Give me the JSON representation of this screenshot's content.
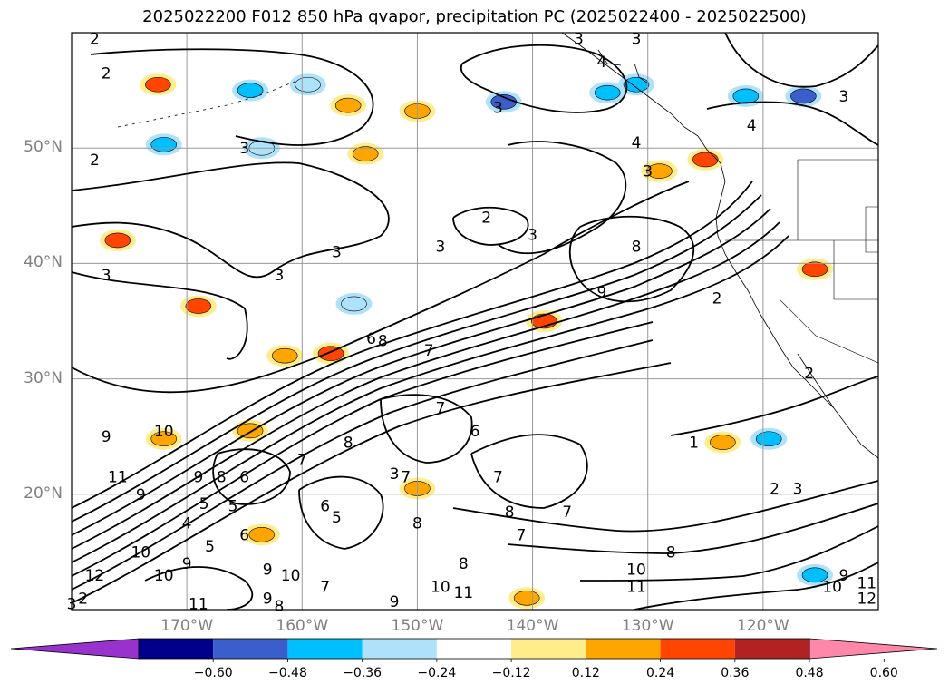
{
  "title": "2025022200 F012 850 hPa qvapor, precipitation PC (2025022400 - 2025022500)",
  "map": {
    "lon_range": [
      -180,
      -110
    ],
    "lat_range": [
      10,
      60
    ],
    "lat_ticks": [
      {
        "value": 50,
        "label": "50°N"
      },
      {
        "value": 40,
        "label": "40°N"
      },
      {
        "value": 30,
        "label": "30°N"
      },
      {
        "value": 20,
        "label": "20°N"
      }
    ],
    "lon_ticks": [
      {
        "value": -170,
        "label": "170°W"
      },
      {
        "value": -160,
        "label": "160°W"
      },
      {
        "value": -150,
        "label": "150°W"
      },
      {
        "value": -140,
        "label": "140°W"
      },
      {
        "value": -130,
        "label": "130°W"
      },
      {
        "value": -120,
        "label": "120°W"
      }
    ],
    "contour_labels": [
      {
        "text": "2",
        "lon": -178,
        "lat": 59.5
      },
      {
        "text": "2",
        "lon": -177,
        "lat": 56.5
      },
      {
        "text": "2",
        "lon": -178,
        "lat": 49
      },
      {
        "text": "3",
        "lon": -165,
        "lat": 50
      },
      {
        "text": "3",
        "lon": -143,
        "lat": 53.5
      },
      {
        "text": "3",
        "lon": -136,
        "lat": 59.5
      },
      {
        "text": "3",
        "lon": -131,
        "lat": 59.5
      },
      {
        "text": "4",
        "lon": -134,
        "lat": 57.5
      },
      {
        "text": "3",
        "lon": -113,
        "lat": 54.5
      },
      {
        "text": "4",
        "lon": -121,
        "lat": 52
      },
      {
        "text": "4",
        "lon": -131,
        "lat": 50.5
      },
      {
        "text": "3",
        "lon": -130,
        "lat": 48
      },
      {
        "text": "3",
        "lon": -148,
        "lat": 41.5
      },
      {
        "text": "2",
        "lon": -144,
        "lat": 44
      },
      {
        "text": "3",
        "lon": -140,
        "lat": 42.5
      },
      {
        "text": "3",
        "lon": -157,
        "lat": 41
      },
      {
        "text": "3",
        "lon": -162,
        "lat": 39
      },
      {
        "text": "3",
        "lon": -177,
        "lat": 39
      },
      {
        "text": "8",
        "lon": -131,
        "lat": 41.5
      },
      {
        "text": "9",
        "lon": -134,
        "lat": 37.5
      },
      {
        "text": "2",
        "lon": -124,
        "lat": 37
      },
      {
        "text": "6",
        "lon": -154,
        "lat": 33.5
      },
      {
        "text": "8",
        "lon": -153,
        "lat": 33.3
      },
      {
        "text": "7",
        "lon": -149,
        "lat": 32.5
      },
      {
        "text": "2",
        "lon": -116,
        "lat": 30.5
      },
      {
        "text": "1",
        "lon": -126,
        "lat": 24.5
      },
      {
        "text": "7",
        "lon": -148,
        "lat": 27.5
      },
      {
        "text": "6",
        "lon": -145,
        "lat": 25.5
      },
      {
        "text": "9",
        "lon": -177,
        "lat": 25
      },
      {
        "text": "10",
        "lon": -172,
        "lat": 25.5
      },
      {
        "text": "8",
        "lon": -156,
        "lat": 24.5
      },
      {
        "text": "7",
        "lon": -160,
        "lat": 23
      },
      {
        "text": "7",
        "lon": -143,
        "lat": 21.5
      },
      {
        "text": "6",
        "lon": -165,
        "lat": 21.5
      },
      {
        "text": "8",
        "lon": -167,
        "lat": 21.5
      },
      {
        "text": "9",
        "lon": -169,
        "lat": 21.5
      },
      {
        "text": "11",
        "lon": -176,
        "lat": 21.5
      },
      {
        "text": "9",
        "lon": -174,
        "lat": 20
      },
      {
        "text": "7",
        "lon": -151,
        "lat": 21.5
      },
      {
        "text": "2",
        "lon": -119,
        "lat": 20.5
      },
      {
        "text": "3",
        "lon": -117,
        "lat": 20.5
      },
      {
        "text": "5",
        "lon": -166,
        "lat": 19
      },
      {
        "text": "6",
        "lon": -158,
        "lat": 19
      },
      {
        "text": "5",
        "lon": -157,
        "lat": 18
      },
      {
        "text": "7",
        "lon": -137,
        "lat": 18.5
      },
      {
        "text": "8",
        "lon": -142,
        "lat": 18.5
      },
      {
        "text": "4",
        "lon": -170,
        "lat": 17.5
      },
      {
        "text": "8",
        "lon": -150,
        "lat": 17.5
      },
      {
        "text": "7",
        "lon": -141,
        "lat": 16.5
      },
      {
        "text": "6",
        "lon": -165,
        "lat": 16.5
      },
      {
        "text": "5",
        "lon": -168,
        "lat": 15.5
      },
      {
        "text": "8",
        "lon": -128,
        "lat": 15
      },
      {
        "text": "10",
        "lon": -174,
        "lat": 15
      },
      {
        "text": "9",
        "lon": -170,
        "lat": 14
      },
      {
        "text": "8",
        "lon": -146,
        "lat": 14
      },
      {
        "text": "9",
        "lon": -163,
        "lat": 13.5
      },
      {
        "text": "10",
        "lon": -161,
        "lat": 13
      },
      {
        "text": "12",
        "lon": -178,
        "lat": 13
      },
      {
        "text": "10",
        "lon": -131,
        "lat": 13.5
      },
      {
        "text": "7",
        "lon": -158,
        "lat": 12
      },
      {
        "text": "10",
        "lon": -148,
        "lat": 12
      },
      {
        "text": "11",
        "lon": -146,
        "lat": 11.5
      },
      {
        "text": "9",
        "lon": -113,
        "lat": 13
      },
      {
        "text": "10",
        "lon": -114,
        "lat": 12
      },
      {
        "text": "11",
        "lon": -131,
        "lat": 12
      },
      {
        "text": "12",
        "lon": -111,
        "lat": 11
      },
      {
        "text": "11",
        "lon": -111,
        "lat": 12.3
      },
      {
        "text": "10",
        "lon": -172,
        "lat": 13
      },
      {
        "text": "11",
        "lon": -169,
        "lat": 10.5
      },
      {
        "text": "9",
        "lon": -163,
        "lat": 11
      },
      {
        "text": "8",
        "lon": -162,
        "lat": 10.3
      },
      {
        "text": "9",
        "lon": -152,
        "lat": 10.7
      },
      {
        "text": "2",
        "lon": -179,
        "lat": 11
      },
      {
        "text": "3",
        "lon": -180,
        "lat": 10.5
      },
      {
        "text": "5",
        "lon": -168.5,
        "lat": 19.2
      },
      {
        "text": "3",
        "lon": -152,
        "lat": 21.8
      }
    ]
  },
  "colorbar": {
    "levels": [
      -0.6,
      -0.48,
      -0.36,
      -0.24,
      -0.12,
      0.12,
      0.24,
      0.36,
      0.48,
      0.6
    ],
    "labels": [
      "−0.60",
      "−0.48",
      "−0.36",
      "−0.24",
      "−0.12",
      "0.12",
      "0.24",
      "0.36",
      "0.48",
      "0.60"
    ],
    "colors": [
      "#9932CC",
      "#00008B",
      "#3A5FCD",
      "#00BFFF",
      "#ADE2FA",
      "#FFFFFF",
      "#FFEC8B",
      "#FFA500",
      "#FF4500",
      "#B22222",
      "#FF88AA"
    ]
  },
  "precip_cells": [
    {
      "lon": -172.5,
      "lat": 55.5,
      "v": 0.38
    },
    {
      "lon": -164.5,
      "lat": 55,
      "v": -0.3
    },
    {
      "lon": -159.5,
      "lat": 55.5,
      "v": -0.2
    },
    {
      "lon": -156,
      "lat": 53.7,
      "v": 0.33
    },
    {
      "lon": -150,
      "lat": 53.2,
      "v": 0.27
    },
    {
      "lon": -142.5,
      "lat": 54,
      "v": -0.42
    },
    {
      "lon": -133.5,
      "lat": 54.8,
      "v": -0.33
    },
    {
      "lon": -116.5,
      "lat": 54.5,
      "v": -0.45
    },
    {
      "lon": -172,
      "lat": 50.3,
      "v": -0.3
    },
    {
      "lon": -163.5,
      "lat": 50,
      "v": -0.2
    },
    {
      "lon": -154.5,
      "lat": 49.5,
      "v": 0.35
    },
    {
      "lon": -129,
      "lat": 48,
      "v": 0.3
    },
    {
      "lon": -125,
      "lat": 49,
      "v": 0.38
    },
    {
      "lon": -176,
      "lat": 42,
      "v": 0.4
    },
    {
      "lon": -169,
      "lat": 36.3,
      "v": 0.38
    },
    {
      "lon": -157.5,
      "lat": 32.2,
      "v": 0.38
    },
    {
      "lon": -161.5,
      "lat": 32,
      "v": 0.33
    },
    {
      "lon": -139,
      "lat": 35,
      "v": 0.4
    },
    {
      "lon": -115.5,
      "lat": 39.5,
      "v": 0.38
    },
    {
      "lon": -164.5,
      "lat": 25.5,
      "v": 0.3
    },
    {
      "lon": -172,
      "lat": 24.8,
      "v": 0.27
    },
    {
      "lon": -123.5,
      "lat": 24.5,
      "v": 0.35
    },
    {
      "lon": -119.5,
      "lat": 24.8,
      "v": -0.3
    },
    {
      "lon": -163.5,
      "lat": 16.5,
      "v": 0.35
    },
    {
      "lon": -140.5,
      "lat": 11,
      "v": 0.35
    },
    {
      "lon": -115.5,
      "lat": 13,
      "v": -0.3
    },
    {
      "lon": -150,
      "lat": 20.5,
      "v": 0.28
    },
    {
      "lon": -155.5,
      "lat": 36.5,
      "v": -0.2
    },
    {
      "lon": -131,
      "lat": 55.5,
      "v": -0.35
    },
    {
      "lon": -121.5,
      "lat": 54.5,
      "v": -0.25
    }
  ]
}
